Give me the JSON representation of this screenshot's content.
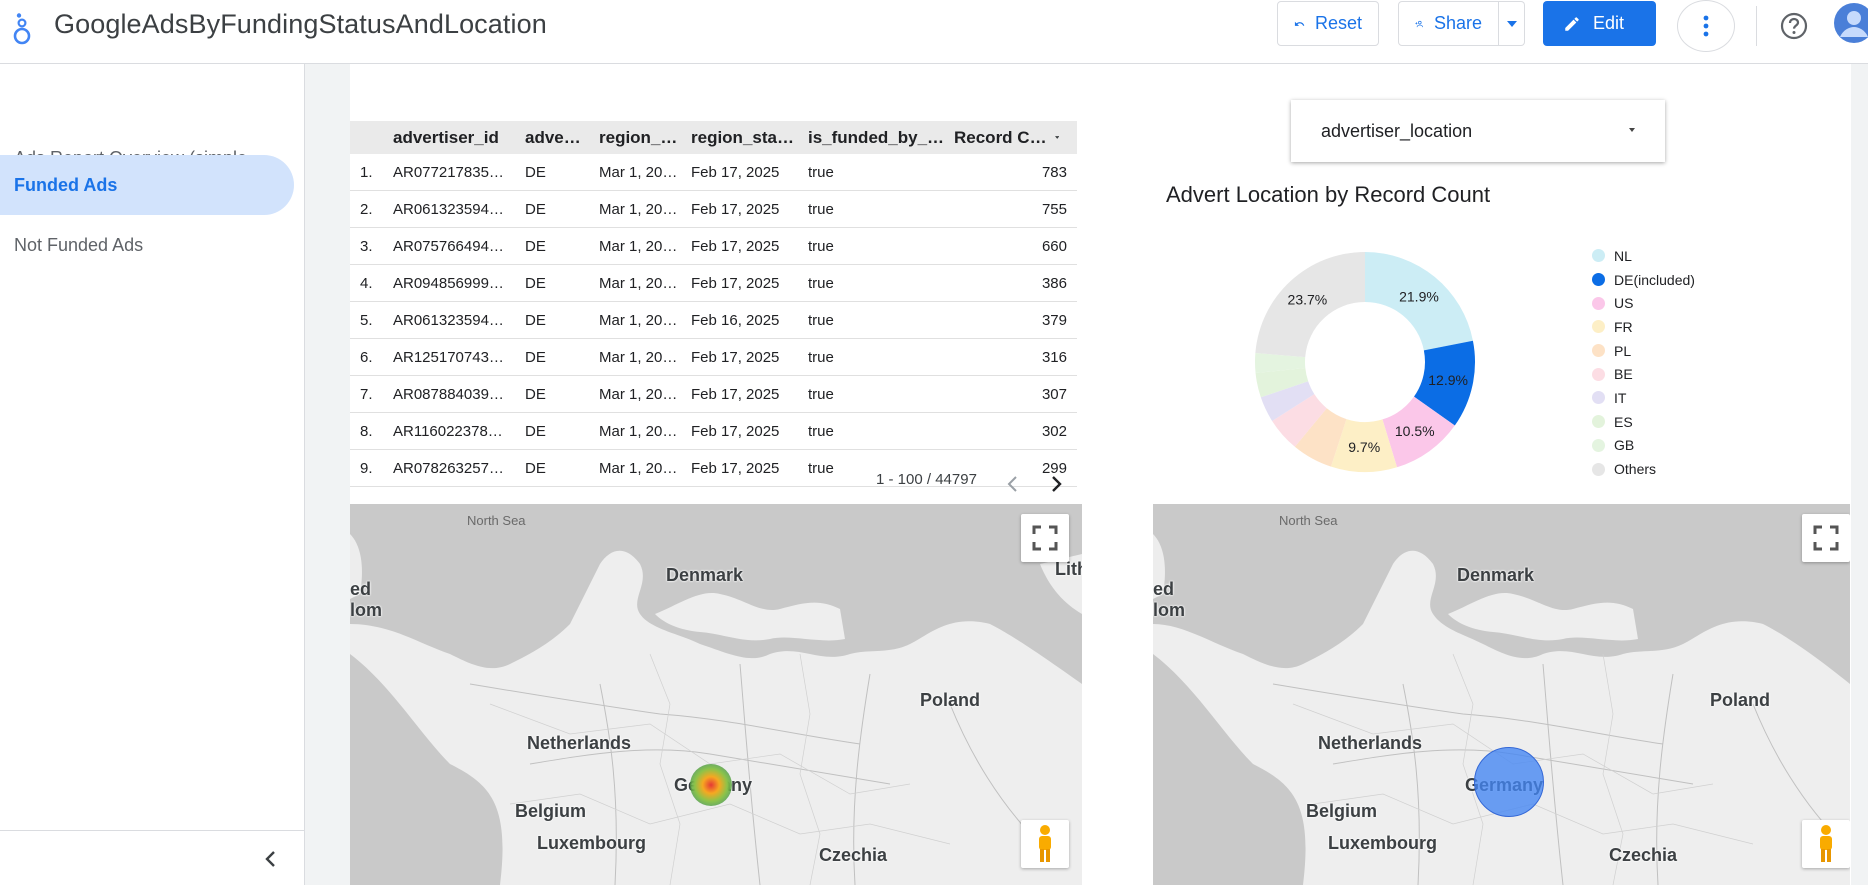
{
  "header": {
    "title": "GoogleAdsByFundingStatusAndLocation",
    "reset_label": "Reset",
    "share_label": "Share",
    "edit_label": "Edit"
  },
  "sidebar": {
    "items": [
      {
        "label": "Ads Report Overview (simple …",
        "active": false
      },
      {
        "label": "Funded Ads",
        "active": true
      },
      {
        "label": "Not Funded Ads",
        "active": false
      }
    ]
  },
  "table": {
    "headers": [
      "advertiser_id",
      "adve…",
      "region_…",
      "region_sta…",
      "is_funded_by_…",
      "Record C…"
    ],
    "rows": [
      [
        "1.",
        "AR077217835…",
        "DE",
        "Mar 1, 20…",
        "Feb 17, 2025",
        "true",
        "783"
      ],
      [
        "2.",
        "AR061323594…",
        "DE",
        "Mar 1, 20…",
        "Feb 17, 2025",
        "true",
        "755"
      ],
      [
        "3.",
        "AR075766494…",
        "DE",
        "Mar 1, 20…",
        "Feb 17, 2025",
        "true",
        "660"
      ],
      [
        "4.",
        "AR094856999…",
        "DE",
        "Mar 1, 20…",
        "Feb 17, 2025",
        "true",
        "386"
      ],
      [
        "5.",
        "AR061323594…",
        "DE",
        "Mar 1, 20…",
        "Feb 16, 2025",
        "true",
        "379"
      ],
      [
        "6.",
        "AR125170743…",
        "DE",
        "Mar 1, 20…",
        "Feb 17, 2025",
        "true",
        "316"
      ],
      [
        "7.",
        "AR087884039…",
        "DE",
        "Mar 1, 20…",
        "Feb 17, 2025",
        "true",
        "307"
      ],
      [
        "8.",
        "AR116022378…",
        "DE",
        "Mar 1, 20…",
        "Feb 17, 2025",
        "true",
        "302"
      ],
      [
        "9.",
        "AR078263257…",
        "DE",
        "Mar 1, 20…",
        "Feb 17, 2025",
        "true",
        "299"
      ]
    ],
    "pagination": "1 - 100 / 44797"
  },
  "filter": {
    "label": "advertiser_location"
  },
  "chart_data": {
    "type": "pie",
    "title": "Advert Location by Record Count",
    "slices": [
      {
        "name": "NL",
        "value": 21.9,
        "label": "21.9%",
        "color": "#ccedf5"
      },
      {
        "name": "DE(included)",
        "value": 12.9,
        "label": "12.9%",
        "color": "#0b6de5"
      },
      {
        "name": "US",
        "value": 10.5,
        "label": "10.5%",
        "color": "#fbc7e9"
      },
      {
        "name": "FR",
        "value": 9.7,
        "label": "9.7%",
        "color": "#fdefc6"
      },
      {
        "name": "PL",
        "value": 6.0,
        "label": "",
        "color": "#fde2c6"
      },
      {
        "name": "BE",
        "value": 5.0,
        "label": "",
        "color": "#fcdde4"
      },
      {
        "name": "IT",
        "value": 3.8,
        "label": "",
        "color": "#e2dff4"
      },
      {
        "name": "ES",
        "value": 3.6,
        "label": "",
        "color": "#e3f3dc"
      },
      {
        "name": "GB",
        "value": 2.9,
        "label": "",
        "color": "#e4f4e0"
      },
      {
        "name": "Others",
        "value": 23.7,
        "label": "23.7%",
        "color": "#e6e6e6"
      }
    ],
    "donut": true,
    "legend_position": "right"
  },
  "maps": {
    "labels": {
      "north_sea": "North Sea",
      "denmark": "Denmark",
      "poland": "Poland",
      "netherlands": "Netherlands",
      "germany": "Germany",
      "belgium": "Belgium",
      "luxembourg": "Luxembourg",
      "czechia": "Czechia",
      "uk_edge_1": "ed",
      "uk_edge_2": "lom",
      "lith_edge": "Lith"
    }
  }
}
